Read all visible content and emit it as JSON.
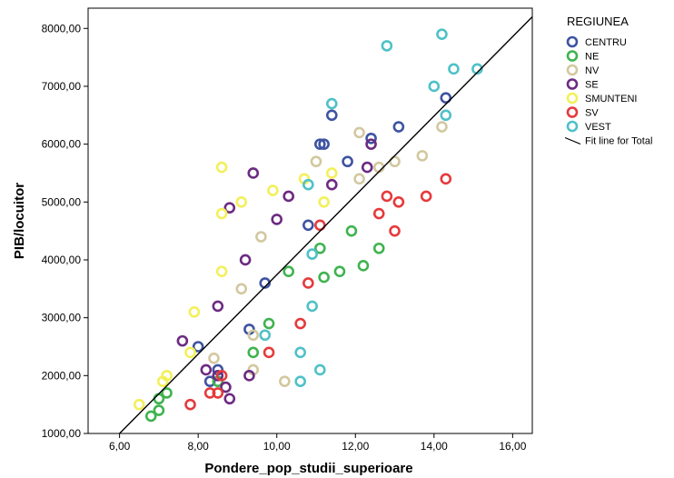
{
  "chart_data": {
    "type": "scatter",
    "xlabel": "Pondere_pop_studii_superioare",
    "ylabel": "PIB/locuitor",
    "xlim": [
      5.2,
      16.5
    ],
    "ylim": [
      1000,
      8350
    ],
    "x_ticks": [
      "6,00",
      "8,00",
      "10,00",
      "12,00",
      "14,00",
      "16,00"
    ],
    "x_tick_values": [
      6,
      8,
      10,
      12,
      14,
      16
    ],
    "y_ticks": [
      "1000,00",
      "2000,00",
      "3000,00",
      "4000,00",
      "5000,00",
      "6000,00",
      "7000,00",
      "8000,00"
    ],
    "y_tick_values": [
      1000,
      2000,
      3000,
      4000,
      5000,
      6000,
      7000,
      8000
    ],
    "grid": false,
    "legend": {
      "title": "REGIUNEA",
      "placement": "right",
      "fit_label": "Fit line for Total"
    },
    "fit_line": {
      "x": [
        6.0,
        16.5
      ],
      "y": [
        1000,
        8200
      ]
    },
    "series": [
      {
        "name": "CENTRU",
        "color": "#3e53a1",
        "points": [
          [
            8.0,
            2500
          ],
          [
            8.3,
            1900
          ],
          [
            8.5,
            2100
          ],
          [
            9.3,
            2800
          ],
          [
            9.7,
            3600
          ],
          [
            10.8,
            4600
          ],
          [
            11.1,
            6000
          ],
          [
            11.2,
            6000
          ],
          [
            11.4,
            6500
          ],
          [
            11.8,
            5700
          ],
          [
            12.4,
            6100
          ],
          [
            13.1,
            6300
          ],
          [
            14.3,
            6800
          ]
        ]
      },
      {
        "name": "NE",
        "color": "#3fb34f",
        "points": [
          [
            6.8,
            1300
          ],
          [
            7.0,
            1400
          ],
          [
            7.0,
            1600
          ],
          [
            7.2,
            1700
          ],
          [
            8.5,
            1900
          ],
          [
            9.4,
            2400
          ],
          [
            9.8,
            2900
          ],
          [
            10.3,
            3800
          ],
          [
            11.1,
            4200
          ],
          [
            11.2,
            3700
          ],
          [
            11.6,
            3800
          ],
          [
            11.9,
            4500
          ],
          [
            12.2,
            3900
          ],
          [
            12.6,
            4200
          ]
        ]
      },
      {
        "name": "NV",
        "color": "#d2c8a0",
        "points": [
          [
            8.4,
            2300
          ],
          [
            9.4,
            2100
          ],
          [
            9.4,
            2700
          ],
          [
            9.1,
            3500
          ],
          [
            9.6,
            4400
          ],
          [
            10.2,
            1900
          ],
          [
            11.0,
            5700
          ],
          [
            12.1,
            5400
          ],
          [
            12.1,
            6200
          ],
          [
            12.6,
            5600
          ],
          [
            13.0,
            5700
          ],
          [
            13.7,
            5800
          ],
          [
            14.2,
            6300
          ]
        ]
      },
      {
        "name": "SE",
        "color": "#6c2b82",
        "points": [
          [
            7.6,
            2600
          ],
          [
            8.2,
            2100
          ],
          [
            8.5,
            2000
          ],
          [
            8.7,
            1800
          ],
          [
            8.8,
            1600
          ],
          [
            8.5,
            3200
          ],
          [
            9.3,
            2000
          ],
          [
            9.2,
            4000
          ],
          [
            8.8,
            4900
          ],
          [
            9.4,
            5500
          ],
          [
            10.0,
            4700
          ],
          [
            10.3,
            5100
          ],
          [
            11.4,
            5300
          ],
          [
            12.3,
            5600
          ],
          [
            12.4,
            6000
          ]
        ]
      },
      {
        "name": "SMUNTENI",
        "color": "#f3f05a",
        "points": [
          [
            6.5,
            1500
          ],
          [
            7.1,
            1900
          ],
          [
            7.2,
            2000
          ],
          [
            7.8,
            2400
          ],
          [
            7.9,
            3100
          ],
          [
            8.6,
            3800
          ],
          [
            8.6,
            4800
          ],
          [
            9.1,
            5000
          ],
          [
            9.9,
            5200
          ],
          [
            10.7,
            5400
          ],
          [
            11.2,
            5000
          ],
          [
            11.4,
            5500
          ],
          [
            8.6,
            5600
          ]
        ]
      },
      {
        "name": "SV",
        "color": "#e53a3c",
        "points": [
          [
            7.8,
            1500
          ],
          [
            8.3,
            1700
          ],
          [
            8.5,
            1700
          ],
          [
            8.6,
            2000
          ],
          [
            9.8,
            2400
          ],
          [
            10.6,
            2900
          ],
          [
            10.8,
            3600
          ],
          [
            11.1,
            4600
          ],
          [
            12.6,
            4800
          ],
          [
            12.8,
            5100
          ],
          [
            13.0,
            4500
          ],
          [
            13.1,
            5000
          ],
          [
            13.8,
            5100
          ],
          [
            14.3,
            5400
          ]
        ]
      },
      {
        "name": "VEST",
        "color": "#4fc1c8",
        "points": [
          [
            9.7,
            2700
          ],
          [
            10.6,
            1900
          ],
          [
            10.6,
            2400
          ],
          [
            10.9,
            3200
          ],
          [
            10.9,
            4100
          ],
          [
            11.1,
            2100
          ],
          [
            10.8,
            5300
          ],
          [
            11.4,
            6700
          ],
          [
            12.8,
            7700
          ],
          [
            14.0,
            7000
          ],
          [
            14.2,
            7900
          ],
          [
            14.3,
            6500
          ],
          [
            14.5,
            7300
          ],
          [
            15.1,
            7300
          ]
        ]
      }
    ]
  }
}
